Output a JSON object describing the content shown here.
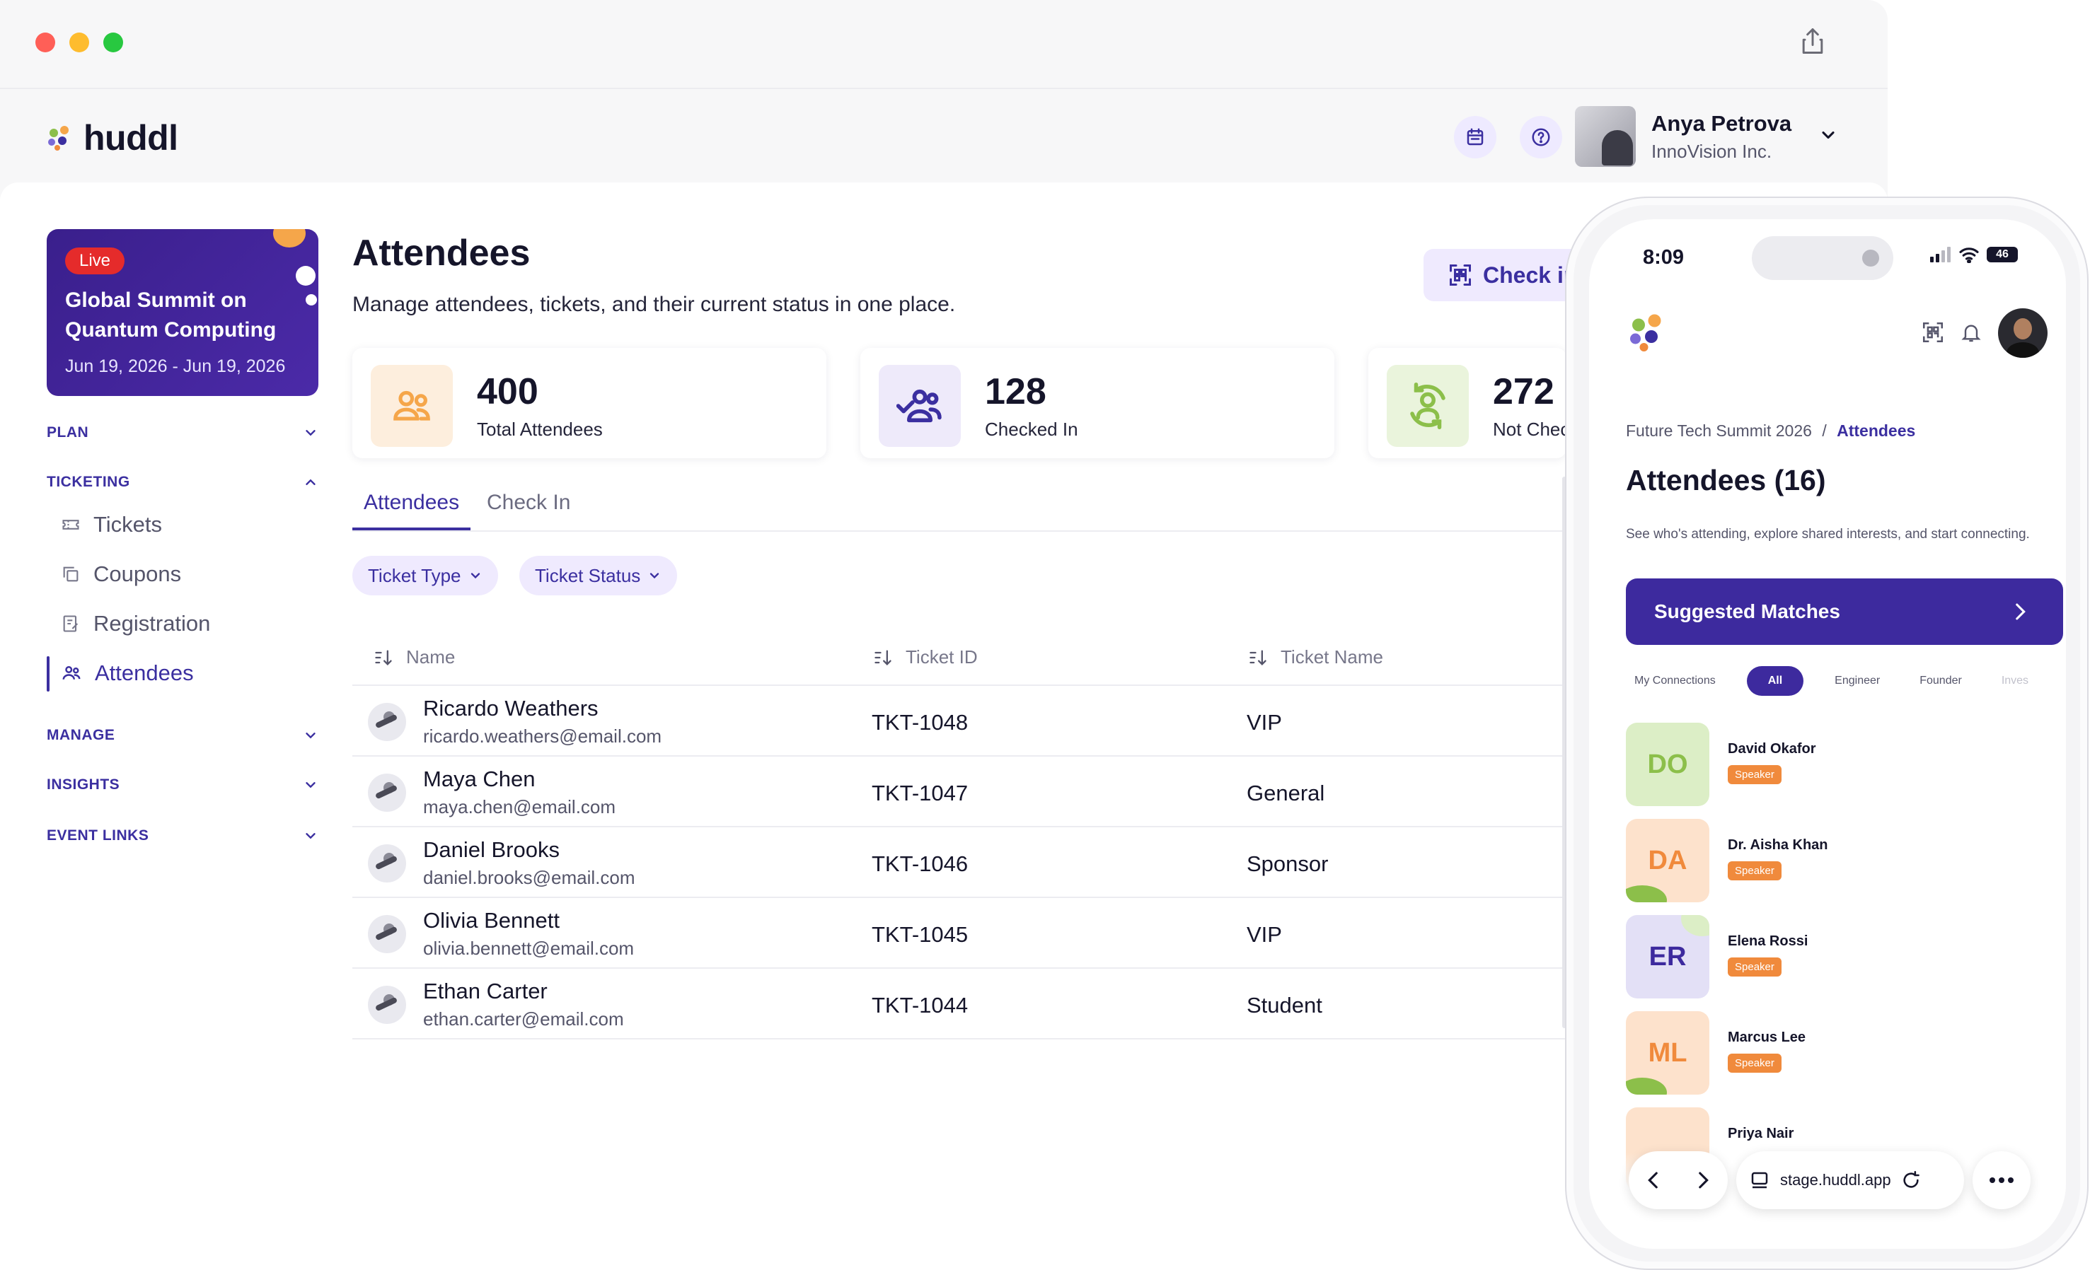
{
  "app": {
    "logo_text": "huddl"
  },
  "header": {
    "icons": [
      "calendar-icon",
      "help-icon",
      "bell-icon"
    ],
    "user": {
      "name": "Anya Petrova",
      "org": "InnoVision Inc."
    }
  },
  "event": {
    "badge": "Live",
    "title": "Global Summit on Quantum Computing",
    "dates": "Jun 19, 2026 - Jun 19, 2026"
  },
  "sidebar": {
    "sections": [
      {
        "label": "PLAN"
      },
      {
        "label": "TICKETING"
      },
      {
        "label": "MANAGE"
      },
      {
        "label": "INSIGHTS"
      },
      {
        "label": "EVENT LINKS"
      }
    ],
    "ticketing_items": [
      {
        "label": "Tickets",
        "icon": "ticket-icon"
      },
      {
        "label": "Coupons",
        "icon": "copy-icon"
      },
      {
        "label": "Registration",
        "icon": "form-icon"
      },
      {
        "label": "Attendees",
        "icon": "people-icon",
        "active": true
      }
    ]
  },
  "main": {
    "title": "Attendees",
    "subtitle": "Manage attendees, tickets, and their current status in one place.",
    "checkin_label": "Check in",
    "stats": [
      {
        "value": "400",
        "label": "Total Attendees",
        "color": "#f5a64a"
      },
      {
        "value": "128",
        "label": "Checked In",
        "color": "#3b2fa0"
      },
      {
        "value": "272",
        "label": "Not Checked In",
        "color": "#8cbf4a"
      }
    ],
    "tabs": [
      {
        "label": "Attendees",
        "active": true
      },
      {
        "label": "Check In",
        "active": false
      }
    ],
    "filters": [
      {
        "label": "Ticket Type"
      },
      {
        "label": "Ticket Status"
      }
    ],
    "table": {
      "columns": [
        "Name",
        "Ticket ID",
        "Ticket Name"
      ],
      "rows": [
        {
          "name": "Ricardo Weathers",
          "email": "ricardo.weathers@email.com",
          "ticket_id": "TKT-1048",
          "ticket_name": "VIP"
        },
        {
          "name": "Maya Chen",
          "email": "maya.chen@email.com",
          "ticket_id": "TKT-1047",
          "ticket_name": "General"
        },
        {
          "name": "Daniel Brooks",
          "email": "daniel.brooks@email.com",
          "ticket_id": "TKT-1046",
          "ticket_name": "Sponsor"
        },
        {
          "name": "Olivia Bennett",
          "email": "olivia.bennett@email.com",
          "ticket_id": "TKT-1045",
          "ticket_name": "VIP"
        },
        {
          "name": "Ethan Carter",
          "email": "ethan.carter@email.com",
          "ticket_id": "TKT-1044",
          "ticket_name": "Student"
        }
      ]
    }
  },
  "phone": {
    "time": "8:09",
    "battery": "46",
    "breadcrumb": {
      "parent": "Future Tech Summit 2026",
      "sep": "/",
      "current": "Attendees"
    },
    "title": "Attendees (16)",
    "subtitle": "See who's attending, explore shared interests, and start connecting.",
    "suggested": "Suggested Matches",
    "chips": [
      {
        "label": "My Connections"
      },
      {
        "label": "All",
        "active": true
      },
      {
        "label": "Engineer"
      },
      {
        "label": "Founder"
      },
      {
        "label": "Inves"
      }
    ],
    "people": [
      {
        "initials": "DO",
        "name": "David Okafor",
        "tag": "Speaker",
        "bg": "#dceec6",
        "fg": "#8cbf4a"
      },
      {
        "initials": "DA",
        "name": "Dr. Aisha Khan",
        "tag": "Speaker",
        "bg": "#fde2cc",
        "fg": "#f08a3c"
      },
      {
        "initials": "ER",
        "name": "Elena Rossi",
        "tag": "Speaker",
        "bg": "#e3e0f6",
        "fg": "#3d2a9e"
      },
      {
        "initials": "ML",
        "name": "Marcus Lee",
        "tag": "Speaker",
        "bg": "#fde2cc",
        "fg": "#f08a3c"
      },
      {
        "initials": "",
        "name": "Priya Nair",
        "tag": "",
        "bg": "#fde2cc",
        "fg": "#f08a3c"
      }
    ],
    "url": "stage.huddl.app"
  }
}
